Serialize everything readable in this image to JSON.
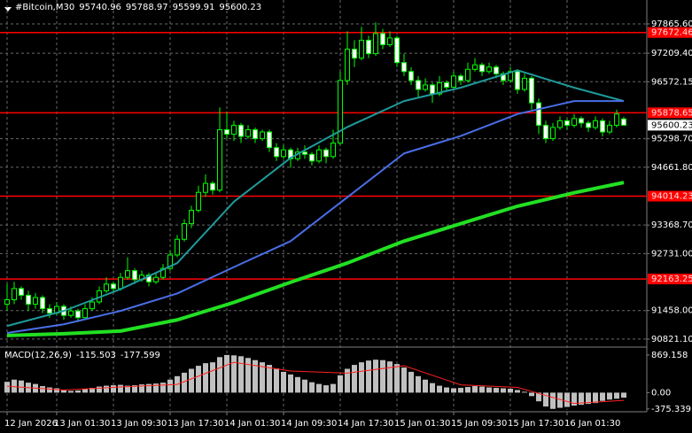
{
  "chart_data": {
    "type": "candlestick",
    "title": "#Bitcoin,M30",
    "color": "#00ff00",
    "candles": [
      [
        91600,
        92050,
        91450,
        91700
      ],
      [
        91700,
        92100,
        91600,
        91950
      ],
      [
        91950,
        92000,
        91700,
        91800
      ],
      [
        91800,
        91900,
        91450,
        91600
      ],
      [
        91600,
        91850,
        91500,
        91750
      ],
      [
        91750,
        91800,
        91400,
        91500
      ],
      [
        91500,
        91600,
        91300,
        91400
      ],
      [
        91400,
        91650,
        91350,
        91550
      ],
      [
        91550,
        91600,
        91250,
        91350
      ],
      [
        91350,
        91550,
        91300,
        91450
      ],
      [
        91450,
        91500,
        91200,
        91300
      ],
      [
        91300,
        91600,
        91250,
        91500
      ],
      [
        91500,
        91750,
        91450,
        91650
      ],
      [
        91650,
        92000,
        91600,
        91900
      ],
      [
        91900,
        92200,
        91850,
        92050
      ],
      [
        92050,
        92100,
        91850,
        91950
      ],
      [
        91950,
        92300,
        91900,
        92200
      ],
      [
        92200,
        92650,
        92150,
        92350
      ],
      [
        92350,
        92400,
        92050,
        92150
      ],
      [
        92150,
        92350,
        92100,
        92250
      ],
      [
        92250,
        92300,
        92000,
        92100
      ],
      [
        92100,
        92300,
        92050,
        92200
      ],
      [
        92200,
        92500,
        92150,
        92400
      ],
      [
        92400,
        92800,
        92350,
        92700
      ],
      [
        92700,
        93150,
        92650,
        93050
      ],
      [
        93050,
        93500,
        93000,
        93400
      ],
      [
        93400,
        93800,
        93300,
        93700
      ],
      [
        93700,
        94250,
        93650,
        94100
      ],
      [
        94100,
        94500,
        94000,
        94300
      ],
      [
        94300,
        94350,
        94050,
        94150
      ],
      [
        94150,
        96000,
        94100,
        95500
      ],
      [
        95500,
        95900,
        95300,
        95400
      ],
      [
        95400,
        95700,
        95250,
        95600
      ],
      [
        95600,
        95650,
        95200,
        95350
      ],
      [
        95350,
        95600,
        95300,
        95500
      ],
      [
        95500,
        95550,
        95200,
        95300
      ],
      [
        95300,
        95500,
        95250,
        95450
      ],
      [
        95450,
        95500,
        95000,
        95100
      ],
      [
        95100,
        95200,
        94800,
        94900
      ],
      [
        94900,
        95150,
        94850,
        95050
      ],
      [
        95050,
        95100,
        94650,
        94850
      ],
      [
        94850,
        95100,
        94800,
        95000
      ],
      [
        95000,
        95150,
        94850,
        94950
      ],
      [
        94950,
        95000,
        94700,
        94800
      ],
      [
        94800,
        95150,
        94750,
        95050
      ],
      [
        95050,
        95100,
        94750,
        94900
      ],
      [
        94900,
        95500,
        94850,
        95200
      ],
      [
        95200,
        96800,
        95150,
        96600
      ],
      [
        96600,
        97700,
        96500,
        97300
      ],
      [
        97300,
        97500,
        96900,
        97100
      ],
      [
        97100,
        97800,
        97050,
        97500
      ],
      [
        97500,
        97600,
        97100,
        97200
      ],
      [
        97200,
        97900,
        97150,
        97650
      ],
      [
        97650,
        97750,
        97300,
        97400
      ],
      [
        97400,
        97700,
        97350,
        97550
      ],
      [
        97550,
        97600,
        96900,
        97000
      ],
      [
        97000,
        97200,
        96700,
        96800
      ],
      [
        96800,
        96900,
        96500,
        96600
      ],
      [
        96600,
        96700,
        96200,
        96400
      ],
      [
        96400,
        96650,
        96350,
        96500
      ],
      [
        96500,
        96550,
        96100,
        96300
      ],
      [
        96300,
        96700,
        96250,
        96550
      ],
      [
        96550,
        96600,
        96350,
        96450
      ],
      [
        96450,
        96800,
        96400,
        96700
      ],
      [
        96700,
        96750,
        96500,
        96600
      ],
      [
        96600,
        97000,
        96550,
        96850
      ],
      [
        96850,
        97100,
        96800,
        96950
      ],
      [
        96950,
        97000,
        96700,
        96800
      ],
      [
        96800,
        97000,
        96750,
        96900
      ],
      [
        96900,
        96950,
        96650,
        96750
      ],
      [
        96750,
        96800,
        96500,
        96600
      ],
      [
        96600,
        96900,
        96550,
        96800
      ],
      [
        96800,
        96850,
        96300,
        96400
      ],
      [
        96400,
        96750,
        96350,
        96650
      ],
      [
        96650,
        96700,
        95950,
        96100
      ],
      [
        96100,
        96200,
        95400,
        95600
      ],
      [
        95600,
        95700,
        95200,
        95300
      ],
      [
        95300,
        95650,
        95250,
        95550
      ],
      [
        95550,
        95800,
        95500,
        95700
      ],
      [
        95700,
        95750,
        95500,
        95600
      ],
      [
        95600,
        95850,
        95550,
        95750
      ],
      [
        95750,
        95800,
        95550,
        95650
      ],
      [
        95650,
        95700,
        95450,
        95550
      ],
      [
        95550,
        95800,
        95500,
        95700
      ],
      [
        95700,
        95750,
        95350,
        95450
      ],
      [
        95450,
        95700,
        95400,
        95600
      ],
      [
        95600,
        95950,
        95550,
        95850
      ],
      [
        95740.96,
        95788.97,
        95599.91,
        95600.23
      ]
    ],
    "xticks": [
      {
        "value": 0,
        "label": "12 Jan 2026"
      },
      {
        "value": 7,
        "label": "13 Jan 01:30"
      },
      {
        "value": 15,
        "label": "13 Jan 09:30"
      },
      {
        "value": 23,
        "label": "13 Jan 17:30"
      },
      {
        "value": 31,
        "label": "14 Jan 01:30"
      },
      {
        "value": 39,
        "label": "14 Jan 09:30"
      },
      {
        "value": 47,
        "label": "14 Jan 17:30"
      },
      {
        "value": 55,
        "label": "15 Jan 01:30"
      },
      {
        "value": 63,
        "label": "15 Jan 09:30"
      },
      {
        "value": 71,
        "label": "15 Jan 17:30"
      },
      {
        "value": 79,
        "label": "16 Jan 01:30"
      }
    ],
    "ylim": [
      90740,
      98300
    ],
    "yticks": [
      {
        "value": 97865.6,
        "label": "97865.60"
      },
      {
        "value": 97209.4,
        "label": "97209.40"
      },
      {
        "value": 96572.15,
        "label": "96572.15"
      },
      {
        "value": 95298.7,
        "label": "95298.70"
      },
      {
        "value": 94661.8,
        "label": "94661.80"
      },
      {
        "value": 93368.7,
        "label": "93368.70"
      },
      {
        "value": 92731,
        "label": "92731.00"
      },
      {
        "value": 91458,
        "label": "91458.00"
      },
      {
        "value": 90821.1,
        "label": "90821.10"
      }
    ],
    "grid": true,
    "levels": {
      "color": "#ff0000",
      "values": [
        97672.46,
        95878.65,
        94014.23,
        92163.25
      ]
    },
    "ma": {
      "x": [
        0,
        8,
        16,
        24,
        32,
        40,
        48,
        56,
        64,
        72,
        80,
        87
      ],
      "series": [
        {
          "color": "#1f9a9a",
          "values": [
            91114,
            91450,
            91936,
            92520,
            93890,
            94870,
            95560,
            96140,
            96440,
            96830,
            96440,
            96140
          ]
        },
        {
          "color": "#4a6ee8",
          "values": [
            90957,
            91150,
            91450,
            91840,
            92430,
            93010,
            93990,
            94970,
            95360,
            95850,
            96140,
            96140
          ]
        },
        {
          "color": "#22e022",
          "values": [
            90900,
            90940,
            91000,
            91250,
            91640,
            92090,
            92520,
            93010,
            93400,
            93790,
            94090,
            94320
          ]
        }
      ]
    },
    "macd": {
      "title": "MACD(12,26,9)",
      "color": "#c0c0c0",
      "values": [
        250,
        300,
        280,
        230,
        200,
        150,
        120,
        100,
        60,
        40,
        50,
        80,
        110,
        140,
        160,
        170,
        180,
        160,
        170,
        190,
        200,
        210,
        230,
        300,
        380,
        460,
        550,
        620,
        680,
        700,
        820,
        869,
        860,
        840,
        800,
        750,
        700,
        640,
        560,
        480,
        420,
        360,
        300,
        240,
        200,
        170,
        200,
        400,
        550,
        640,
        700,
        740,
        760,
        750,
        720,
        660,
        580,
        480,
        380,
        300,
        220,
        160,
        120,
        100,
        110,
        130,
        150,
        140,
        120,
        110,
        100,
        90,
        60,
        20,
        -80,
        -200,
        -320,
        -375,
        -350,
        -330,
        -300,
        -280,
        -260,
        -240,
        -190,
        -160,
        -140,
        -115.503
      ],
      "signal": {
        "color": "#ff2020",
        "values": [
          150,
          60,
          130,
          190,
          700,
          500,
          450,
          620,
          180,
          120,
          -250,
          -177.599
        ]
      },
      "ylim": [
        -400,
        1030
      ],
      "yticks": [
        {
          "value": 869.158,
          "label": "869.158"
        },
        {
          "value": 0,
          "label": "0.00"
        },
        {
          "value": -375.339,
          "label": "-375.339"
        }
      ]
    }
  }
}
